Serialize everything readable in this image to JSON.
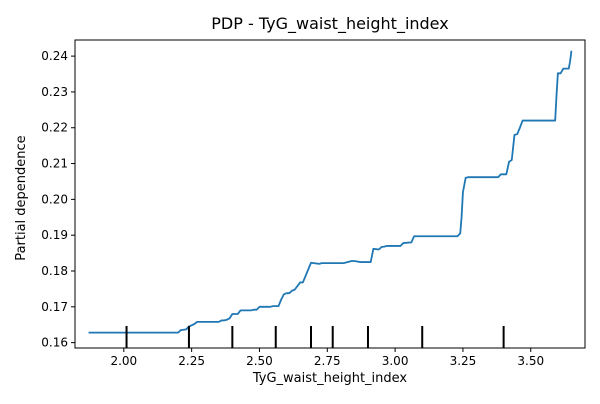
{
  "chart_data": {
    "type": "line",
    "title": "PDP - TyG_waist_height_index",
    "xlabel": "TyG_waist_height_index",
    "ylabel": "Partial dependence",
    "xlim": [
      1.82,
      3.7
    ],
    "ylim": [
      0.1585,
      0.2445
    ],
    "xticks": [
      {
        "value": 2.0,
        "label": "2.00"
      },
      {
        "value": 2.25,
        "label": "2.25"
      },
      {
        "value": 2.5,
        "label": "2.50"
      },
      {
        "value": 2.75,
        "label": "2.75"
      },
      {
        "value": 3.0,
        "label": "3.00"
      },
      {
        "value": 3.25,
        "label": "3.25"
      },
      {
        "value": 3.5,
        "label": "3.50"
      }
    ],
    "yticks": [
      {
        "value": 0.16,
        "label": "0.16"
      },
      {
        "value": 0.17,
        "label": "0.17"
      },
      {
        "value": 0.18,
        "label": "0.18"
      },
      {
        "value": 0.19,
        "label": "0.19"
      },
      {
        "value": 0.2,
        "label": "0.20"
      },
      {
        "value": 0.21,
        "label": "0.21"
      },
      {
        "value": 0.22,
        "label": "0.22"
      },
      {
        "value": 0.23,
        "label": "0.23"
      },
      {
        "value": 0.24,
        "label": "0.24"
      }
    ],
    "grid": false,
    "line_color": "#1f77b4",
    "series": [
      {
        "x": [
          1.87,
          2.2,
          2.21,
          2.23,
          2.24,
          2.26,
          2.27,
          2.35,
          2.36,
          2.37,
          2.38,
          2.39,
          2.4,
          2.42,
          2.43,
          2.47,
          2.48,
          2.49,
          2.5,
          2.54,
          2.55,
          2.57,
          2.58,
          2.59,
          2.6,
          2.61,
          2.62,
          2.63,
          2.65,
          2.66,
          2.69,
          2.7,
          2.72,
          2.73,
          2.8,
          2.81,
          2.84,
          2.85,
          2.87,
          2.91,
          2.92,
          2.94,
          2.95,
          2.96,
          2.97,
          3.02,
          3.03,
          3.06,
          3.07,
          3.2,
          3.23,
          3.24,
          3.245,
          3.25,
          3.26,
          3.27,
          3.38,
          3.39,
          3.41,
          3.42,
          3.43,
          3.44,
          3.45,
          3.46,
          3.47,
          3.48,
          3.49,
          3.5,
          3.59,
          3.595,
          3.6,
          3.61,
          3.62,
          3.64,
          3.645,
          3.65
        ],
        "y": [
          0.1628,
          0.1628,
          0.1635,
          0.1637,
          0.1645,
          0.1652,
          0.1658,
          0.1658,
          0.1662,
          0.1662,
          0.1664,
          0.1668,
          0.168,
          0.168,
          0.169,
          0.169,
          0.1692,
          0.1692,
          0.17,
          0.17,
          0.1702,
          0.1702,
          0.172,
          0.1735,
          0.1738,
          0.1738,
          0.1745,
          0.1748,
          0.1768,
          0.1768,
          0.1823,
          0.1822,
          0.182,
          0.1822,
          0.1822,
          0.1822,
          0.1828,
          0.1828,
          0.1825,
          0.1825,
          0.1862,
          0.186,
          0.1867,
          0.1868,
          0.187,
          0.187,
          0.1878,
          0.188,
          0.1897,
          0.1897,
          0.1897,
          0.1905,
          0.195,
          0.202,
          0.206,
          0.2062,
          0.2062,
          0.207,
          0.207,
          0.2105,
          0.211,
          0.218,
          0.2182,
          0.22,
          0.222,
          0.222,
          0.222,
          0.222,
          0.222,
          0.229,
          0.2352,
          0.2352,
          0.2365,
          0.2365,
          0.2385,
          0.2415
        ]
      }
    ],
    "rug_marks": [
      2.01,
      2.24,
      2.4,
      2.56,
      2.69,
      2.77,
      2.9,
      3.1,
      3.4
    ]
  }
}
